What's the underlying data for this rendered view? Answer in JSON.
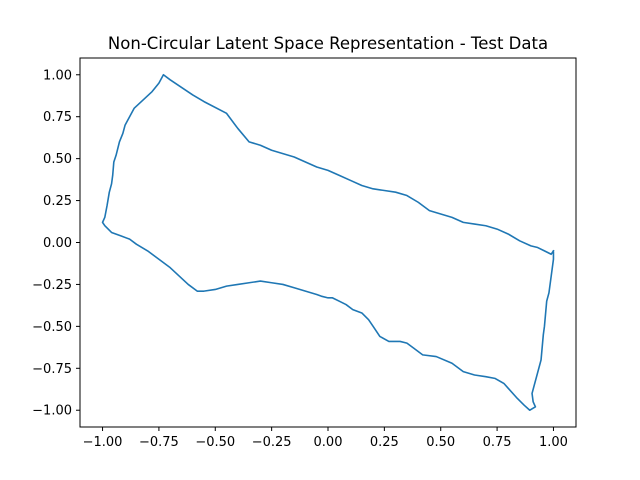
{
  "chart_data": {
    "type": "line",
    "title": "Non-Circular Latent Space Representation - Test Data",
    "xlabel": "",
    "ylabel": "",
    "xlim": [
      -1.1,
      1.1
    ],
    "ylim": [
      -1.1,
      1.1
    ],
    "x_ticks": [
      -1.0,
      -0.75,
      -0.5,
      -0.25,
      0.0,
      0.25,
      0.5,
      0.75,
      1.0
    ],
    "x_tick_labels": [
      "−1.00",
      "−0.75",
      "−0.50",
      "−0.25",
      "0.00",
      "0.25",
      "0.50",
      "0.75",
      "1.00"
    ],
    "y_ticks": [
      1.0,
      0.75,
      0.5,
      0.25,
      0.0,
      -0.25,
      -0.5,
      -0.75,
      -1.0
    ],
    "y_tick_labels": [
      "1.00",
      "0.75",
      "0.50",
      "0.25",
      "0.00",
      "−0.25",
      "−0.50",
      "−0.75",
      "−1.00"
    ],
    "grid": false,
    "series": [
      {
        "color": "#1f77b4",
        "x": [
          1.0,
          1.0,
          0.99,
          0.98,
          0.97,
          0.96,
          0.955,
          0.945,
          0.935,
          0.925,
          0.915,
          0.905,
          0.91,
          0.92,
          0.895,
          0.87,
          0.84,
          0.8,
          0.78,
          0.74,
          0.7,
          0.65,
          0.6,
          0.55,
          0.48,
          0.42,
          0.38,
          0.35,
          0.32,
          0.27,
          0.23,
          0.2,
          0.18,
          0.15,
          0.11,
          0.08,
          0.05,
          0.02,
          0.0,
          -0.03,
          -0.05,
          -0.1,
          -0.15,
          -0.2,
          -0.25,
          -0.3,
          -0.35,
          -0.4,
          -0.45,
          -0.5,
          -0.55,
          -0.58,
          -0.62,
          -0.66,
          -0.7,
          -0.75,
          -0.8,
          -0.85,
          -0.88,
          -0.92,
          -0.96,
          -0.99,
          -1.0,
          -0.99,
          -0.98,
          -0.97,
          -0.96,
          -0.955,
          -0.95,
          -0.94,
          -0.925,
          -0.91,
          -0.9,
          -0.88,
          -0.86,
          -0.82,
          -0.78,
          -0.75,
          -0.73,
          -0.7,
          -0.6,
          -0.55,
          -0.45,
          -0.4,
          -0.35,
          -0.3,
          -0.25,
          -0.2,
          -0.15,
          -0.1,
          -0.05,
          0.0,
          0.05,
          0.1,
          0.15,
          0.2,
          0.25,
          0.3,
          0.35,
          0.4,
          0.45,
          0.5,
          0.55,
          0.6,
          0.65,
          0.7,
          0.75,
          0.8,
          0.85,
          0.9,
          0.93,
          0.96,
          0.99,
          1.0
        ],
        "y": [
          -0.05,
          -0.1,
          -0.2,
          -0.3,
          -0.35,
          -0.5,
          -0.55,
          -0.7,
          -0.75,
          -0.8,
          -0.85,
          -0.9,
          -0.95,
          -0.98,
          -1.0,
          -0.97,
          -0.93,
          -0.87,
          -0.84,
          -0.81,
          -0.8,
          -0.79,
          -0.77,
          -0.72,
          -0.68,
          -0.67,
          -0.63,
          -0.6,
          -0.59,
          -0.59,
          -0.56,
          -0.5,
          -0.46,
          -0.42,
          -0.4,
          -0.37,
          -0.35,
          -0.33,
          -0.33,
          -0.32,
          -0.31,
          -0.29,
          -0.27,
          -0.25,
          -0.24,
          -0.23,
          -0.24,
          -0.25,
          -0.26,
          -0.28,
          -0.29,
          -0.29,
          -0.25,
          -0.2,
          -0.15,
          -0.1,
          -0.05,
          -0.01,
          0.02,
          0.04,
          0.06,
          0.1,
          0.12,
          0.15,
          0.22,
          0.3,
          0.35,
          0.4,
          0.48,
          0.52,
          0.6,
          0.65,
          0.7,
          0.75,
          0.8,
          0.85,
          0.9,
          0.95,
          1.0,
          0.97,
          0.88,
          0.84,
          0.77,
          0.68,
          0.6,
          0.58,
          0.55,
          0.53,
          0.51,
          0.48,
          0.45,
          0.43,
          0.4,
          0.37,
          0.34,
          0.32,
          0.31,
          0.3,
          0.28,
          0.24,
          0.19,
          0.17,
          0.15,
          0.12,
          0.11,
          0.1,
          0.08,
          0.05,
          0.01,
          -0.02,
          -0.03,
          -0.05,
          -0.07,
          -0.05
        ]
      }
    ]
  }
}
